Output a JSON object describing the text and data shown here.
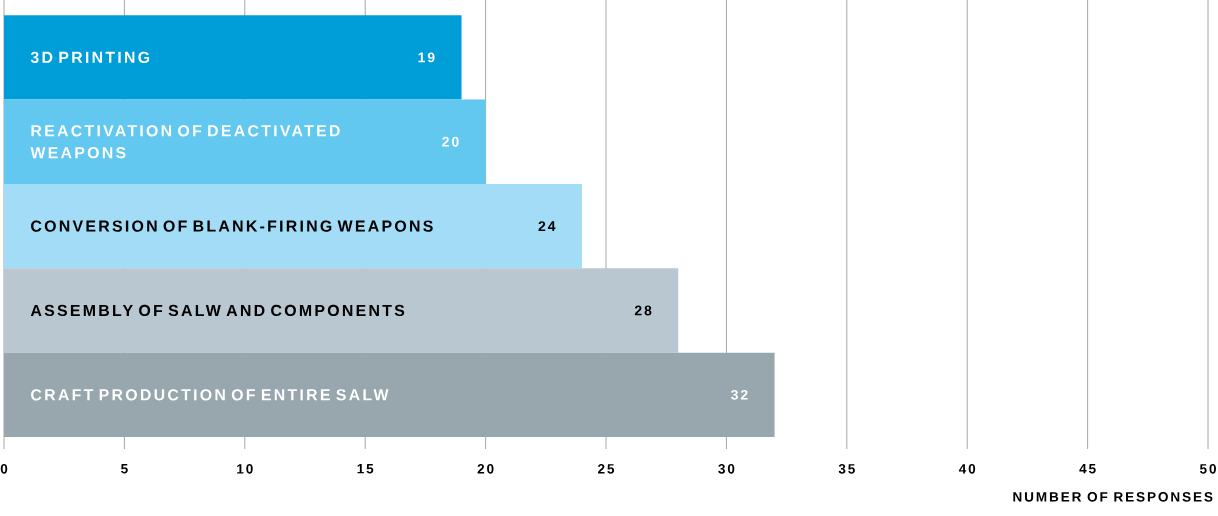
{
  "chart_data": {
    "type": "bar",
    "orientation": "horizontal",
    "xlabel": "NUMBER OF RESPONSES",
    "categories": [
      "3D PRINTING",
      "REACTIVATION OF DEACTIVATED WEAPONS",
      "CONVERSION OF BLANK-FIRING WEAPONS",
      "ASSEMBLY OF SALW AND COMPONENTS",
      "CRAFT PRODUCTION OF ENTIRE SALW"
    ],
    "values": [
      19,
      20,
      24,
      28,
      32
    ],
    "colors": [
      "#009ed8",
      "#62c8f0",
      "#a3dcf6",
      "#b8c7d0",
      "#98a6ad"
    ],
    "xlim": [
      0,
      50
    ],
    "xticks": [
      0,
      5,
      10,
      15,
      20,
      25,
      30,
      35,
      40,
      45,
      50
    ],
    "grid": "x",
    "data_labels": true
  }
}
